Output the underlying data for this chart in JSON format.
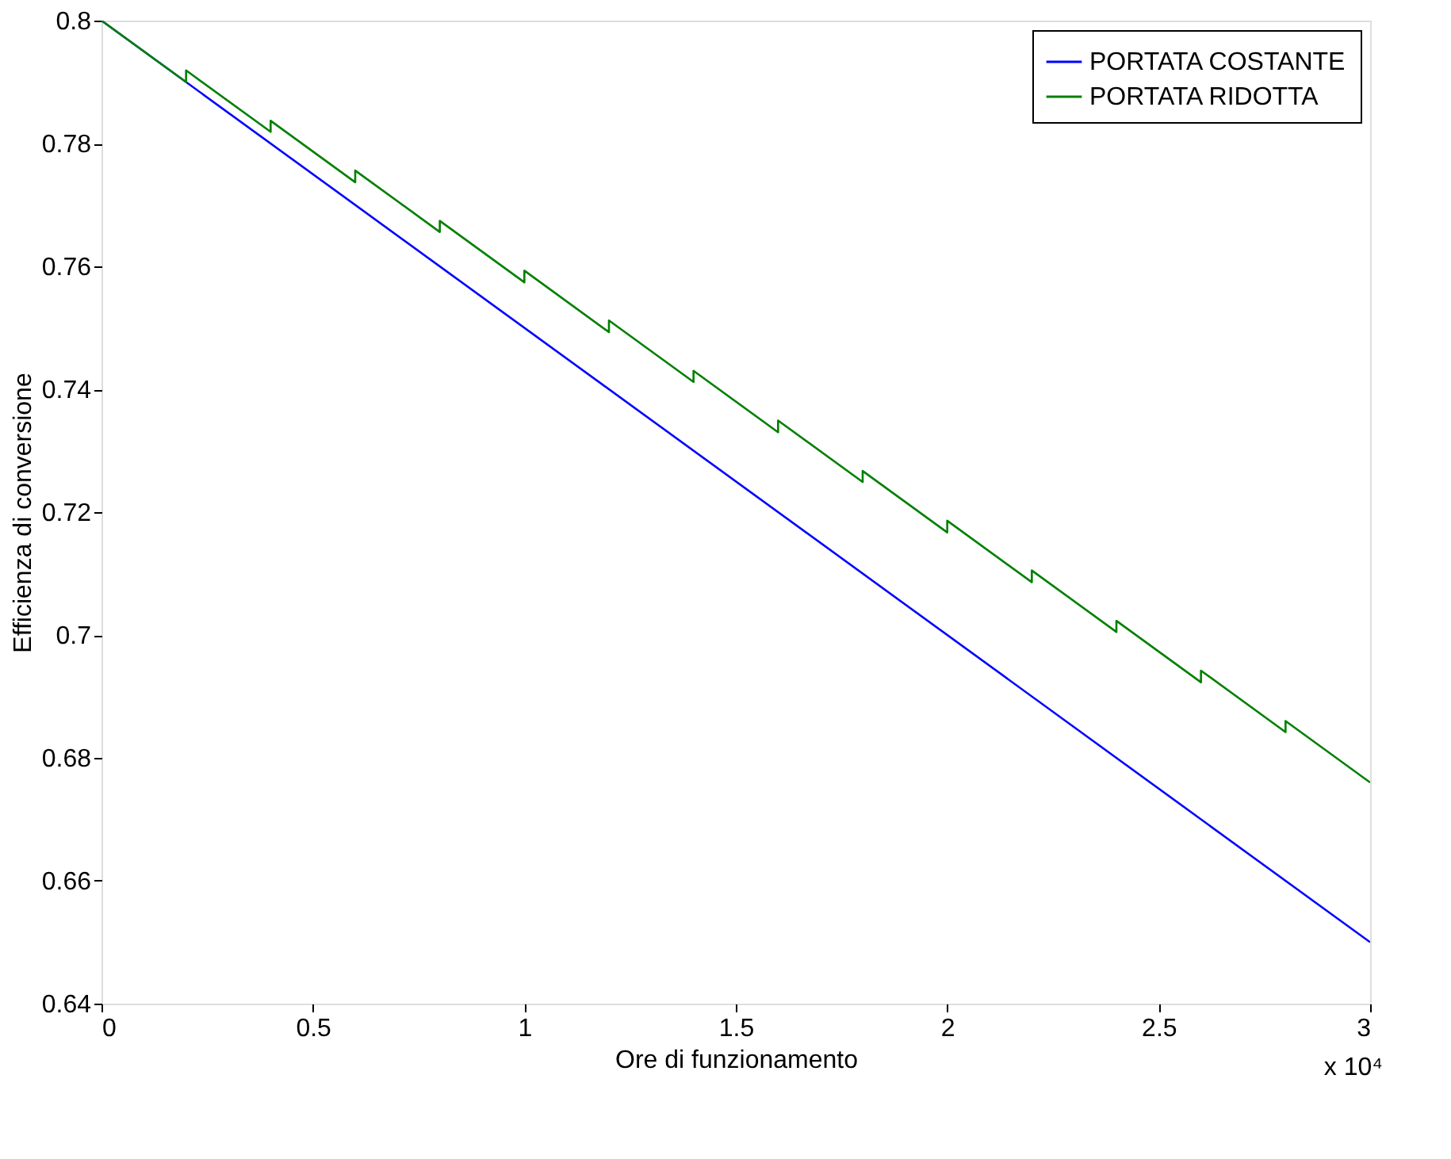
{
  "chart_data": {
    "type": "line",
    "xlabel": "Ore di funzionamento",
    "ylabel": "Efficienza di conversione",
    "xlim": [
      0,
      3
    ],
    "xticks": [
      0,
      0.5,
      1,
      1.5,
      2,
      2.5,
      3
    ],
    "ylim": [
      0.64,
      0.8
    ],
    "yticks": [
      0.64,
      0.66,
      0.68,
      0.7,
      0.72,
      0.74,
      0.76,
      0.78,
      0.8
    ],
    "grid": false,
    "legend": "top right",
    "marker": "none",
    "line_style": "solid",
    "annotations": [
      {
        "text": "x 10⁴"
      }
    ],
    "series": [
      {
        "name": "PORTATA COSTANTE",
        "color": "#0000ff",
        "x": [
          0,
          3
        ],
        "values": [
          0.8,
          0.65
        ]
      },
      {
        "name": "PORTATA RIDOTTA",
        "color": "#008000",
        "x": [
          0,
          0.2,
          0.2,
          0.4,
          0.4,
          0.6,
          0.6,
          0.8,
          0.8,
          1.0,
          1.0,
          1.2,
          1.2,
          1.4,
          1.4,
          1.6,
          1.6,
          1.8,
          1.8,
          2.0,
          2.0,
          2.2,
          2.2,
          2.4,
          2.4,
          2.6,
          2.6,
          2.8,
          2.8,
          3.0
        ],
        "values": [
          0.8,
          0.79,
          0.7919,
          0.7819,
          0.7837,
          0.7737,
          0.7756,
          0.7656,
          0.7674,
          0.7574,
          0.7593,
          0.7493,
          0.7512,
          0.7412,
          0.743,
          0.733,
          0.7349,
          0.7249,
          0.7267,
          0.7167,
          0.7186,
          0.7086,
          0.7105,
          0.7005,
          0.7023,
          0.6923,
          0.6942,
          0.6842,
          0.686,
          0.676
        ]
      }
    ]
  }
}
